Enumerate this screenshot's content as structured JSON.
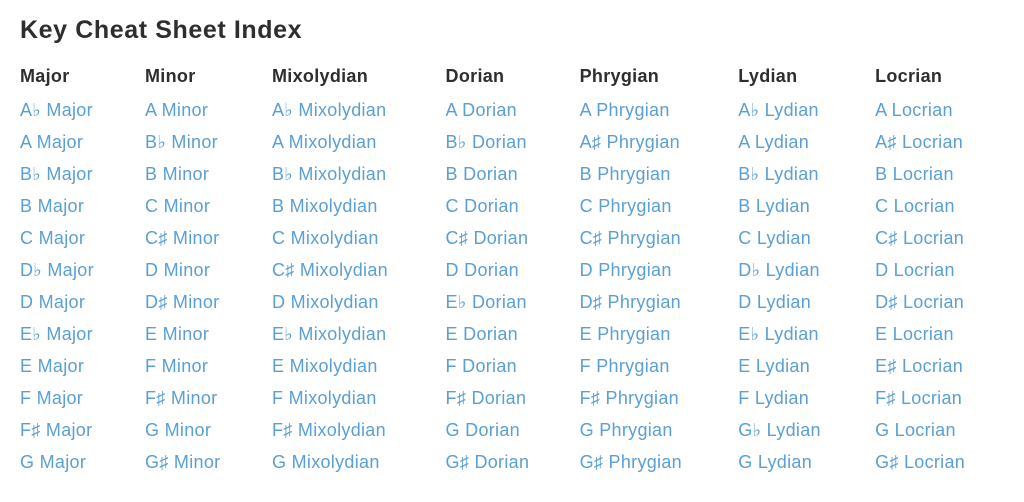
{
  "page": {
    "title": "Key Cheat Sheet Index"
  },
  "colors": {
    "link_blue": "#5a9fd6",
    "heading_dark": "#2e2e2e",
    "background": "#ffffff"
  },
  "table": {
    "columns": [
      {
        "header": "Major",
        "links": [
          "A♭ Major",
          "A Major",
          "B♭ Major",
          "B Major",
          "C Major",
          "D♭ Major",
          "D Major",
          "E♭ Major",
          "E Major",
          "F Major",
          "F♯ Major",
          "G Major"
        ]
      },
      {
        "header": "Minor",
        "links": [
          "A Minor",
          "B♭ Minor",
          "B Minor",
          "C Minor",
          "C♯ Minor",
          "D Minor",
          "D♯ Minor",
          "E Minor",
          "F Minor",
          "F♯ Minor",
          "G Minor",
          "G♯ Minor"
        ]
      },
      {
        "header": "Mixolydian",
        "links": [
          "A♭ Mixolydian",
          "A Mixolydian",
          "B♭ Mixolydian",
          "B Mixolydian",
          "C Mixolydian",
          "C♯ Mixolydian",
          "D Mixolydian",
          "E♭ Mixolydian",
          "E Mixolydian",
          "F Mixolydian",
          "F♯ Mixolydian",
          "G Mixolydian"
        ]
      },
      {
        "header": "Dorian",
        "links": [
          "A Dorian",
          "B♭ Dorian",
          "B Dorian",
          "C Dorian",
          "C♯ Dorian",
          "D Dorian",
          "E♭ Dorian",
          "E Dorian",
          "F Dorian",
          "F♯ Dorian",
          "G Dorian",
          "G♯ Dorian"
        ]
      },
      {
        "header": "Phrygian",
        "links": [
          "A Phrygian",
          "A♯ Phrygian",
          "B Phrygian",
          "C Phrygian",
          "C♯ Phrygian",
          "D Phrygian",
          "D♯ Phrygian",
          "E Phrygian",
          "F Phrygian",
          "F♯ Phrygian",
          "G Phrygian",
          "G♯ Phrygian"
        ]
      },
      {
        "header": "Lydian",
        "links": [
          "A♭ Lydian",
          "A Lydian",
          "B♭ Lydian",
          "B Lydian",
          "C Lydian",
          "D♭ Lydian",
          "D Lydian",
          "E♭ Lydian",
          "E Lydian",
          "F Lydian",
          "G♭ Lydian",
          "G Lydian"
        ]
      },
      {
        "header": "Locrian",
        "links": [
          "A Locrian",
          "A♯ Locrian",
          "B Locrian",
          "C Locrian",
          "C♯ Locrian",
          "D Locrian",
          "D♯ Locrian",
          "E Locrian",
          "E♯ Locrian",
          "F♯ Locrian",
          "G Locrian",
          "G♯ Locrian"
        ]
      }
    ]
  }
}
